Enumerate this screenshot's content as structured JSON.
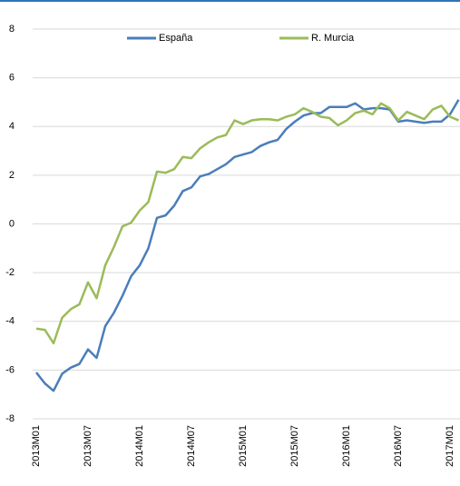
{
  "chart_data": {
    "type": "line",
    "categories": [
      "2013M01",
      null,
      null,
      null,
      null,
      null,
      "2013M07",
      null,
      null,
      null,
      null,
      null,
      "2014M01",
      null,
      null,
      null,
      null,
      null,
      "2014M07",
      null,
      null,
      null,
      null,
      null,
      "2015M01",
      null,
      null,
      null,
      null,
      null,
      "2015M07",
      null,
      null,
      null,
      null,
      null,
      "2016M01",
      null,
      null,
      null,
      null,
      null,
      "2016M07",
      null,
      null,
      null,
      null,
      null,
      "2017M01",
      null
    ],
    "series": [
      {
        "name": "España",
        "color": "#4a7ebb",
        "values": [
          -6.1,
          -6.55,
          -6.85,
          -6.15,
          -5.9,
          -5.75,
          -5.15,
          -5.5,
          -4.2,
          -3.65,
          -2.95,
          -2.15,
          -1.7,
          -1.0,
          0.25,
          0.35,
          0.75,
          1.35,
          1.5,
          1.95,
          2.05,
          2.25,
          2.45,
          2.75,
          2.85,
          2.95,
          3.2,
          3.35,
          3.45,
          3.9,
          4.2,
          4.45,
          4.55,
          4.55,
          4.8,
          4.8,
          4.8,
          4.95,
          4.7,
          4.75,
          4.75,
          4.7,
          4.2,
          4.25,
          4.2,
          4.15,
          4.2,
          4.2,
          4.5,
          5.1
        ]
      },
      {
        "name": "R. Murcia",
        "color": "#9bbb59",
        "values": [
          -4.3,
          -4.35,
          -4.9,
          -3.85,
          -3.5,
          -3.3,
          -2.4,
          -3.05,
          -1.7,
          -0.95,
          -0.1,
          0.05,
          0.55,
          0.9,
          2.15,
          2.1,
          2.25,
          2.75,
          2.7,
          3.1,
          3.35,
          3.55,
          3.65,
          4.25,
          4.1,
          4.25,
          4.3,
          4.3,
          4.25,
          4.4,
          4.5,
          4.75,
          4.6,
          4.4,
          4.35,
          4.05,
          4.25,
          4.55,
          4.65,
          4.5,
          4.95,
          4.75,
          4.25,
          4.6,
          4.45,
          4.3,
          4.7,
          4.85,
          4.4,
          4.25
        ]
      }
    ],
    "ylim": [
      -8,
      8
    ],
    "yticks": [
      -8,
      -6,
      -4,
      -2,
      0,
      2,
      4,
      6,
      8
    ],
    "grid": true,
    "legend": "top"
  }
}
